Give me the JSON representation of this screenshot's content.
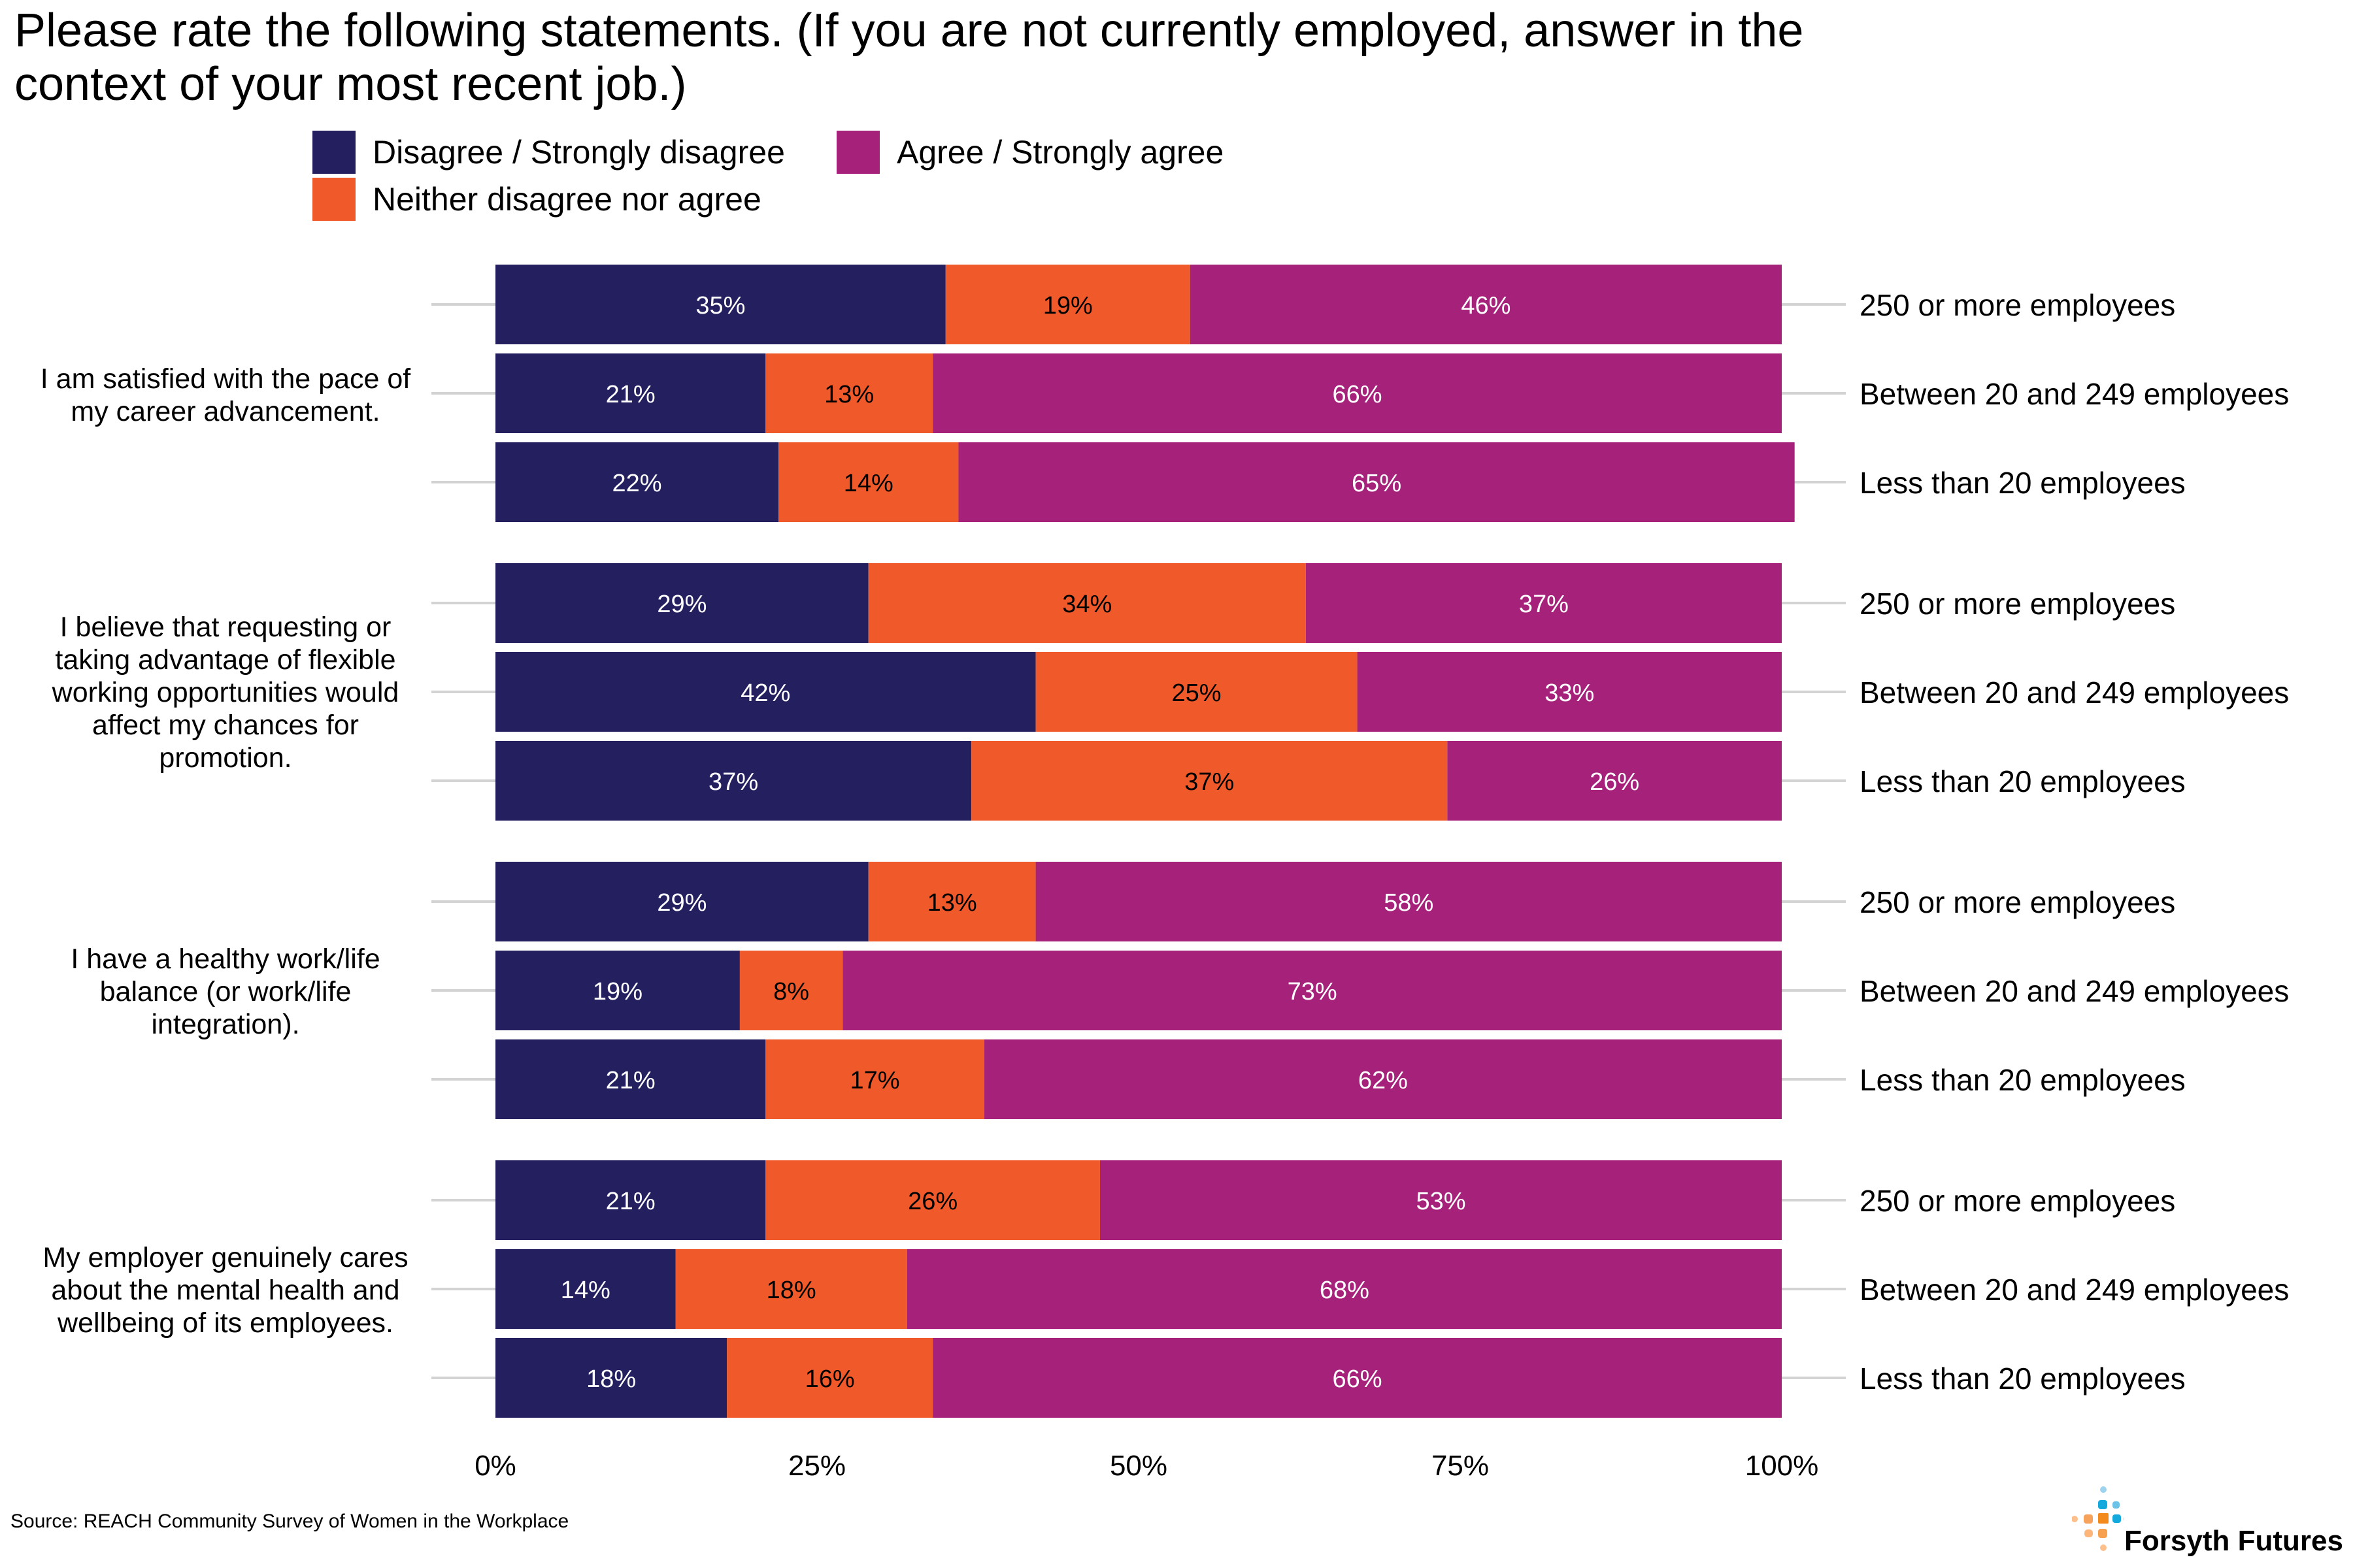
{
  "title": "Please rate the following statements. (If you are not currently employed, answer in the context of your most recent job.)",
  "legend": [
    {
      "label": "Disagree / Strongly disagree",
      "color": "#24205F"
    },
    {
      "label": "Agree / Strongly agree",
      "color": "#A5217A"
    },
    {
      "label": "Neither disagree nor agree",
      "color": "#F05A2B"
    }
  ],
  "source": "Source: REACH Community Survey of Women in the Workplace",
  "logo": {
    "name": "Forsyth Futures"
  },
  "chart_data": {
    "type": "bar",
    "orientation": "horizontal-stacked-100",
    "title": "Please rate the following statements. (If you are not currently employed, answer in the context of your most recent job.)",
    "xlabel": "",
    "ylabel": "",
    "xlim": [
      0,
      100
    ],
    "x_ticks": [
      "0%",
      "25%",
      "50%",
      "75%",
      "100%"
    ],
    "x_tick_values": [
      0,
      25,
      50,
      75,
      100
    ],
    "legend_position": "top-left",
    "series_names": [
      "Disagree / Strongly disagree",
      "Neither disagree nor agree",
      "Agree / Strongly agree"
    ],
    "series_colors": [
      "#24205F",
      "#F05A2B",
      "#A5217A"
    ],
    "label_colors": [
      "#FFFFFF",
      "#000000",
      "#FFFFFF"
    ],
    "groups": [
      {
        "statement": "I am satisfied with the pace of my career advancement.",
        "rows": [
          {
            "category": "250 or more employees",
            "values": [
              35,
              19,
              46
            ]
          },
          {
            "category": "Between 20 and 249 employees",
            "values": [
              21,
              13,
              66
            ]
          },
          {
            "category": "Less than 20 employees",
            "values": [
              22,
              14,
              65
            ]
          }
        ]
      },
      {
        "statement": "I believe that requesting or taking advantage of flexible working opportunities would affect my chances for promotion.",
        "rows": [
          {
            "category": "250 or more employees",
            "values": [
              29,
              34,
              37
            ]
          },
          {
            "category": "Between 20 and 249 employees",
            "values": [
              42,
              25,
              33
            ]
          },
          {
            "category": "Less than 20 employees",
            "values": [
              37,
              37,
              26
            ]
          }
        ]
      },
      {
        "statement": "I have a healthy work/life balance (or work/life integration).",
        "rows": [
          {
            "category": "250 or more employees",
            "values": [
              29,
              13,
              58
            ]
          },
          {
            "category": "Between 20 and 249 employees",
            "values": [
              19,
              8,
              73
            ]
          },
          {
            "category": "Less than 20 employees",
            "values": [
              21,
              17,
              62
            ]
          }
        ]
      },
      {
        "statement": "My employer genuinely cares about the mental health and wellbeing of its employees.",
        "rows": [
          {
            "category": "250 or more employees",
            "values": [
              21,
              26,
              53
            ]
          },
          {
            "category": "Between 20 and 249 employees",
            "values": [
              14,
              18,
              68
            ]
          },
          {
            "category": "Less than 20 employees",
            "values": [
              18,
              16,
              66
            ]
          }
        ]
      }
    ]
  }
}
